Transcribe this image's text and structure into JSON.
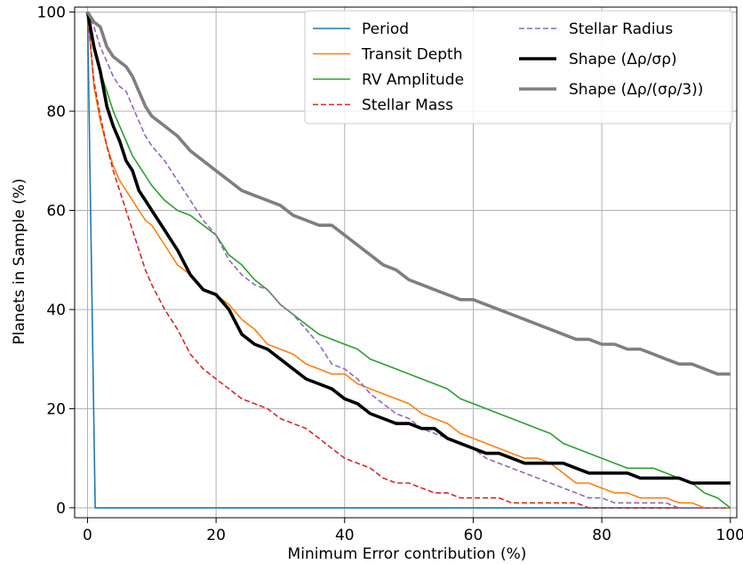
{
  "chart_data": {
    "type": "line",
    "title": "",
    "xlabel": "Minimum Error contribution (%)",
    "ylabel": "Planets in Sample (%)",
    "xlim": [
      -2,
      101
    ],
    "ylim": [
      -2,
      101
    ],
    "xticks": [
      0,
      20,
      40,
      60,
      80,
      100
    ],
    "yticks": [
      0,
      20,
      40,
      60,
      80,
      100
    ],
    "grid": true,
    "legend_position": "top-right",
    "legend_columns": 2,
    "series": [
      {
        "name": "Period",
        "color": "#1f77b4",
        "dash": "solid",
        "width": "normal",
        "x": [
          0,
          1.2,
          100
        ],
        "y": [
          100,
          0,
          0
        ]
      },
      {
        "name": "Transit Depth",
        "color": "#ff7f0e",
        "dash": "solid",
        "width": "normal",
        "x": [
          0,
          1,
          2,
          3,
          4,
          5,
          6,
          7,
          8,
          9,
          10,
          12,
          14,
          16,
          18,
          20,
          22,
          24,
          26,
          28,
          30,
          32,
          34,
          36,
          38,
          40,
          42,
          44,
          46,
          48,
          50,
          52,
          54,
          56,
          58,
          60,
          62,
          64,
          66,
          68,
          70,
          72,
          74,
          76,
          78,
          80,
          82,
          84,
          86,
          88,
          90,
          92,
          94,
          96,
          98,
          100
        ],
        "y": [
          100,
          85,
          78,
          73,
          69,
          66,
          64,
          62,
          60,
          58,
          57,
          53,
          49,
          47,
          44,
          43,
          41,
          38,
          36,
          33,
          32,
          31,
          29,
          28,
          27,
          27,
          25,
          24,
          23,
          22,
          21,
          19,
          18,
          17,
          15,
          14,
          13,
          12,
          11,
          10,
          10,
          9,
          7,
          5,
          5,
          4,
          3,
          3,
          2,
          2,
          2,
          1,
          1,
          0,
          0,
          0
        ]
      },
      {
        "name": "RV Amplitude",
        "color": "#2ca02c",
        "dash": "solid",
        "width": "normal",
        "x": [
          0,
          1,
          2,
          3,
          4,
          5,
          6,
          7,
          8,
          9,
          10,
          12,
          14,
          16,
          18,
          20,
          22,
          24,
          26,
          28,
          30,
          32,
          34,
          36,
          38,
          40,
          42,
          44,
          46,
          48,
          50,
          52,
          54,
          56,
          58,
          60,
          62,
          64,
          66,
          68,
          70,
          72,
          74,
          76,
          78,
          80,
          82,
          84,
          86,
          88,
          90,
          92,
          94,
          96,
          98,
          100
        ],
        "y": [
          100,
          93,
          88,
          84,
          80,
          77,
          74,
          71,
          69,
          67,
          65,
          62,
          60,
          59,
          57,
          55,
          51,
          49,
          46,
          44,
          41,
          39,
          37,
          35,
          34,
          33,
          32,
          30,
          29,
          28,
          27,
          26,
          25,
          24,
          22,
          21,
          20,
          19,
          18,
          17,
          16,
          15,
          13,
          12,
          11,
          10,
          9,
          8,
          8,
          8,
          7,
          6,
          5,
          3,
          2,
          0
        ]
      },
      {
        "name": "Stellar Mass",
        "color": "#d62728",
        "dash": "dashed",
        "width": "normal",
        "x": [
          0,
          1,
          2,
          3,
          4,
          5,
          6,
          7,
          8,
          9,
          10,
          12,
          14,
          16,
          18,
          20,
          22,
          24,
          26,
          28,
          30,
          32,
          34,
          36,
          38,
          40,
          42,
          44,
          46,
          48,
          50,
          52,
          54,
          56,
          58,
          60,
          62,
          64,
          66,
          68,
          70,
          72,
          74,
          76,
          78,
          80,
          85,
          90,
          95,
          100
        ],
        "y": [
          100,
          86,
          79,
          73,
          68,
          64,
          60,
          56,
          52,
          48,
          45,
          40,
          36,
          31,
          28,
          26,
          24,
          22,
          21,
          20,
          18,
          17,
          16,
          14,
          12,
          10,
          9,
          8,
          6,
          5,
          5,
          4,
          3,
          3,
          2,
          2,
          2,
          2,
          1,
          1,
          1,
          1,
          1,
          1,
          0,
          0,
          0,
          0,
          0,
          0
        ]
      },
      {
        "name": "Stellar Radius",
        "color": "#9467bd",
        "dash": "dashed",
        "width": "normal",
        "x": [
          0,
          1,
          2,
          3,
          4,
          5,
          6,
          7,
          8,
          9,
          10,
          12,
          14,
          16,
          18,
          20,
          22,
          24,
          26,
          28,
          30,
          32,
          34,
          36,
          38,
          40,
          42,
          44,
          46,
          48,
          50,
          52,
          54,
          56,
          58,
          60,
          62,
          64,
          66,
          68,
          70,
          72,
          74,
          76,
          78,
          80,
          82,
          84,
          86,
          88,
          90,
          92,
          94,
          96,
          98,
          100
        ],
        "y": [
          100,
          97,
          93,
          90,
          87,
          85,
          84,
          81,
          78,
          75,
          73,
          70,
          66,
          62,
          58,
          55,
          50,
          47,
          45,
          44,
          41,
          39,
          36,
          33,
          29,
          28,
          26,
          23,
          21,
          19,
          18,
          16,
          15,
          14,
          13,
          12,
          10,
          9,
          8,
          7,
          6,
          5,
          4,
          3,
          2,
          2,
          1,
          1,
          1,
          1,
          1,
          0,
          0,
          0,
          0,
          0
        ]
      },
      {
        "name": "Shape (Δρ/σρ)",
        "color": "#000000",
        "dash": "solid",
        "width": "thick",
        "x": [
          0,
          1,
          2,
          3,
          4,
          5,
          6,
          7,
          8,
          9,
          10,
          12,
          14,
          16,
          18,
          20,
          22,
          24,
          26,
          28,
          30,
          32,
          34,
          36,
          38,
          40,
          42,
          44,
          46,
          48,
          50,
          52,
          54,
          56,
          58,
          60,
          62,
          64,
          66,
          68,
          70,
          72,
          74,
          76,
          78,
          80,
          82,
          84,
          86,
          88,
          90,
          92,
          94,
          96,
          98,
          100
        ],
        "y": [
          100,
          93,
          88,
          81,
          77,
          74,
          70,
          68,
          64,
          62,
          60,
          56,
          52,
          47,
          44,
          43,
          40,
          35,
          33,
          32,
          30,
          28,
          26,
          25,
          24,
          22,
          21,
          19,
          18,
          17,
          17,
          16,
          16,
          14,
          13,
          12,
          11,
          11,
          10,
          9,
          9,
          9,
          9,
          8,
          7,
          7,
          7,
          7,
          6,
          6,
          6,
          6,
          5,
          5,
          5,
          5
        ]
      },
      {
        "name": "Shape (Δρ/(σρ/3))",
        "color": "#7f7f7f",
        "dash": "solid",
        "width": "thick",
        "x": [
          0,
          1,
          2,
          3,
          4,
          5,
          6,
          7,
          8,
          9,
          10,
          12,
          14,
          16,
          18,
          20,
          22,
          24,
          26,
          28,
          30,
          32,
          34,
          36,
          38,
          40,
          42,
          44,
          46,
          48,
          50,
          52,
          54,
          56,
          58,
          60,
          62,
          64,
          66,
          68,
          70,
          72,
          74,
          76,
          78,
          80,
          82,
          84,
          86,
          88,
          90,
          92,
          94,
          96,
          98,
          100
        ],
        "y": [
          100,
          98,
          97,
          93,
          91,
          90,
          89,
          87,
          84,
          81,
          79,
          77,
          75,
          72,
          70,
          68,
          66,
          64,
          63,
          62,
          61,
          59,
          58,
          57,
          57,
          55,
          53,
          51,
          49,
          48,
          46,
          45,
          44,
          43,
          42,
          42,
          41,
          40,
          39,
          38,
          37,
          36,
          35,
          34,
          34,
          33,
          33,
          32,
          32,
          31,
          30,
          29,
          29,
          28,
          27,
          27
        ]
      }
    ]
  }
}
